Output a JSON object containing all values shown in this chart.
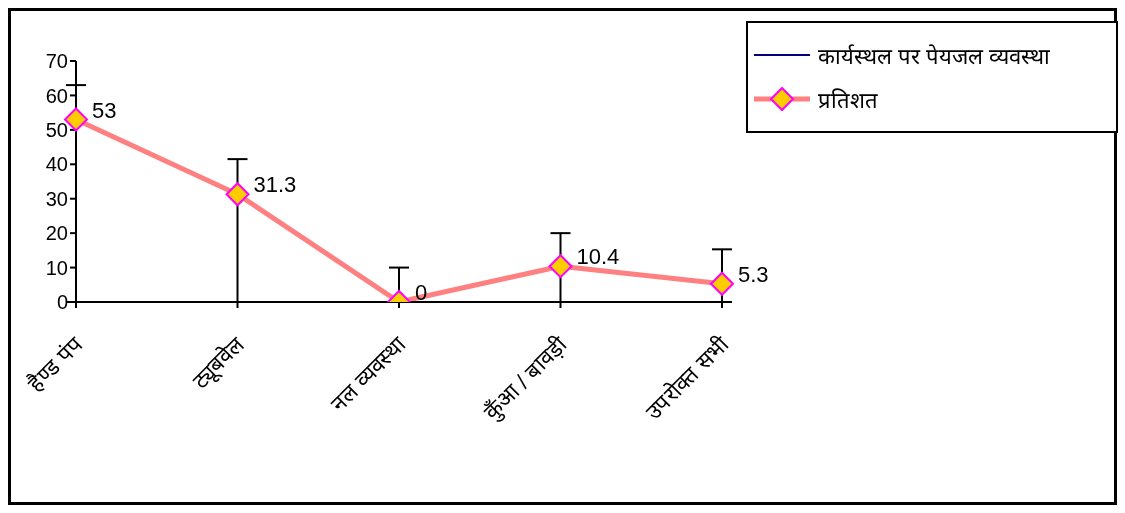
{
  "chart_data": {
    "type": "line",
    "categories": [
      "हैण्ड पंप",
      "ट्यूबवेल",
      "नल व्यवस्था",
      "कुँआ / बावड़ी",
      "उपरोक्त सभी"
    ],
    "series": [
      {
        "name": "कार्यस्थल पर पेयजल व्यवस्था",
        "color": "#000080",
        "values": [
          null,
          null,
          null,
          null,
          null
        ],
        "marker": "none"
      },
      {
        "name": "प्रतिशत",
        "color": "#ff8080",
        "values": [
          53,
          31.3,
          0,
          10.4,
          5.3
        ],
        "marker": "diamond",
        "errors": [
          [
            0,
            63
          ],
          [
            0,
            41.5
          ],
          [
            0,
            10
          ],
          [
            0,
            20
          ],
          [
            0,
            15.3
          ]
        ]
      }
    ],
    "ylim": [
      0,
      70
    ],
    "yticks": [
      0,
      10,
      20,
      30,
      40,
      50,
      60,
      70
    ],
    "grid": false,
    "legend": "top right",
    "data_labels": true
  }
}
